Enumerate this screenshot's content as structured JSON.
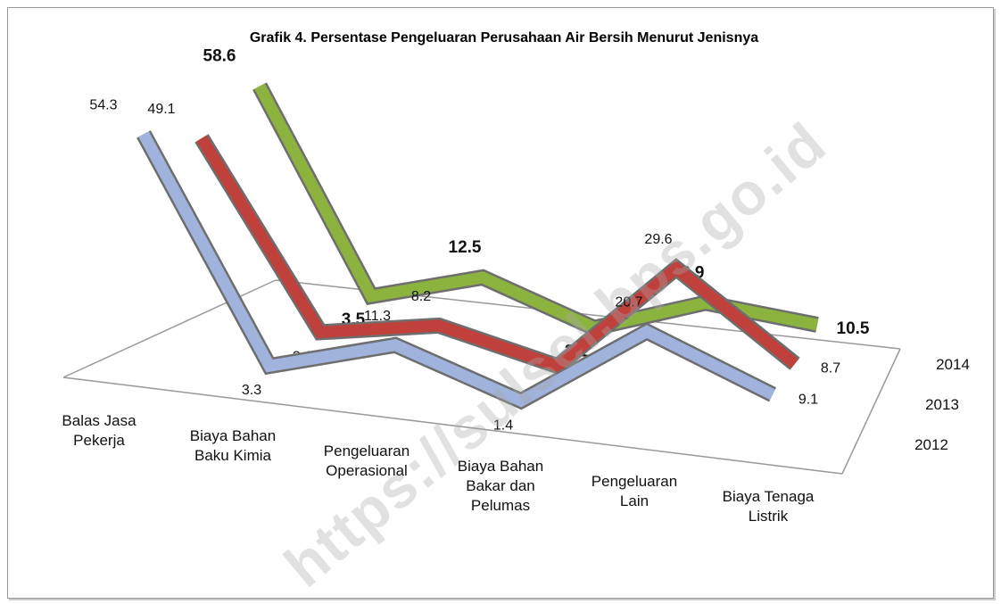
{
  "chart_data": {
    "type": "line",
    "title": "Grafik 4. Persentase Pengeluaran Perusahaan Air Bersih Menurut Jenisnya",
    "categories": [
      "Balas Jasa\nPekerja",
      "Biaya Bahan\nBaku Kimia",
      "Pengeluaran\nOperasional",
      "Biaya Bahan\nBakar dan\nPelumas",
      "Pengeluaran\nLain",
      "Biaya Tenaga\nListrik"
    ],
    "series": [
      {
        "name": "2012",
        "color": "#9fb3dc",
        "values": [
          54.3,
          3.3,
          11.3,
          1.4,
          20.7,
          9.1
        ]
      },
      {
        "name": "2013",
        "color": "#c0403c",
        "values": [
          49.1,
          3.1,
          8.2,
          1.3,
          29.6,
          8.7
        ]
      },
      {
        "name": "2014",
        "color": "#8db33f",
        "values": [
          58.6,
          3.5,
          12.5,
          2.1,
          12.9,
          10.5
        ]
      }
    ],
    "watermark": "https://sulsel.bps.go.id"
  }
}
